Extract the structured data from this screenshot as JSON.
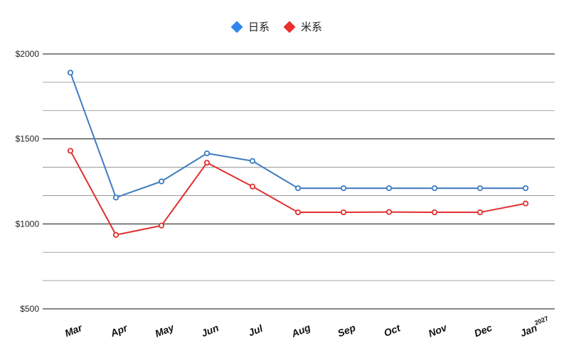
{
  "chart_data": {
    "type": "line",
    "categories": [
      "Mar",
      "Apr",
      "May",
      "Jun",
      "Jul",
      "Aug",
      "Sep",
      "Oct",
      "Nov",
      "Dec",
      "Jan"
    ],
    "category_superscripts": {
      "10": "2027"
    },
    "series": [
      {
        "name": "日系",
        "color": "#3f7cc0",
        "marker_color": "#2f86f0",
        "values": [
          1890,
          1155,
          1250,
          1415,
          1370,
          1210,
          1210,
          1210,
          1210,
          1210,
          1210
        ]
      },
      {
        "name": "米系",
        "color": "#e03030",
        "marker_color": "#e8302e",
        "values": [
          1430,
          935,
          990,
          1360,
          1220,
          1068,
          1068,
          1070,
          1068,
          1068,
          1120
        ]
      }
    ],
    "ylim": [
      500,
      2000
    ],
    "yticks": [
      500,
      1000,
      1500,
      2000
    ],
    "ytick_labels": [
      "$500",
      "$1000",
      "$1500",
      "$2000"
    ],
    "minor_grid_step": 166.667,
    "grid": true,
    "legend_position": "top-center",
    "title": "",
    "xlabel": "",
    "ylabel": ""
  }
}
